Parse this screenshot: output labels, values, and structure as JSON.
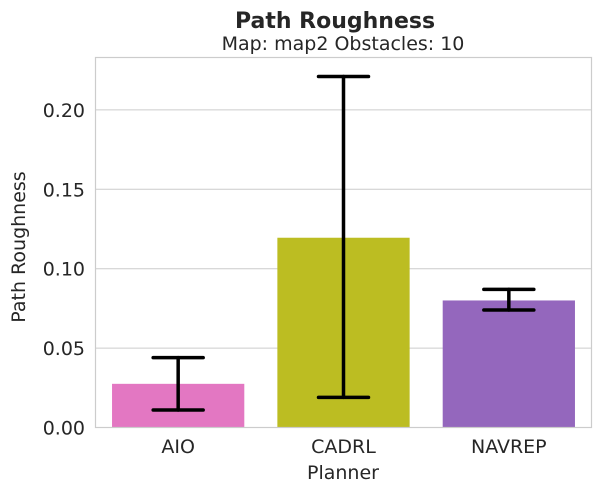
{
  "chart_data": {
    "type": "bar",
    "title": "Path Roughness",
    "subtitle": "Map: map2 Obstacles: 10",
    "xlabel": "Planner",
    "ylabel": "Path Roughness",
    "categories": [
      "AIO",
      "CADRL",
      "NAVREP"
    ],
    "values": [
      0.0275,
      0.1195,
      0.08
    ],
    "error_low": [
      0.011,
      0.019,
      0.074
    ],
    "error_high": [
      0.044,
      0.221,
      0.087
    ],
    "colors": [
      "#e377c2",
      "#bcbd22",
      "#9467bd"
    ],
    "ylim": [
      0,
      0.233
    ],
    "yticks": [
      0.0,
      0.05,
      0.1,
      0.15,
      0.2
    ],
    "ytick_labels": [
      "0.00",
      "0.05",
      "0.10",
      "0.15",
      "0.20"
    ],
    "grid": true
  }
}
